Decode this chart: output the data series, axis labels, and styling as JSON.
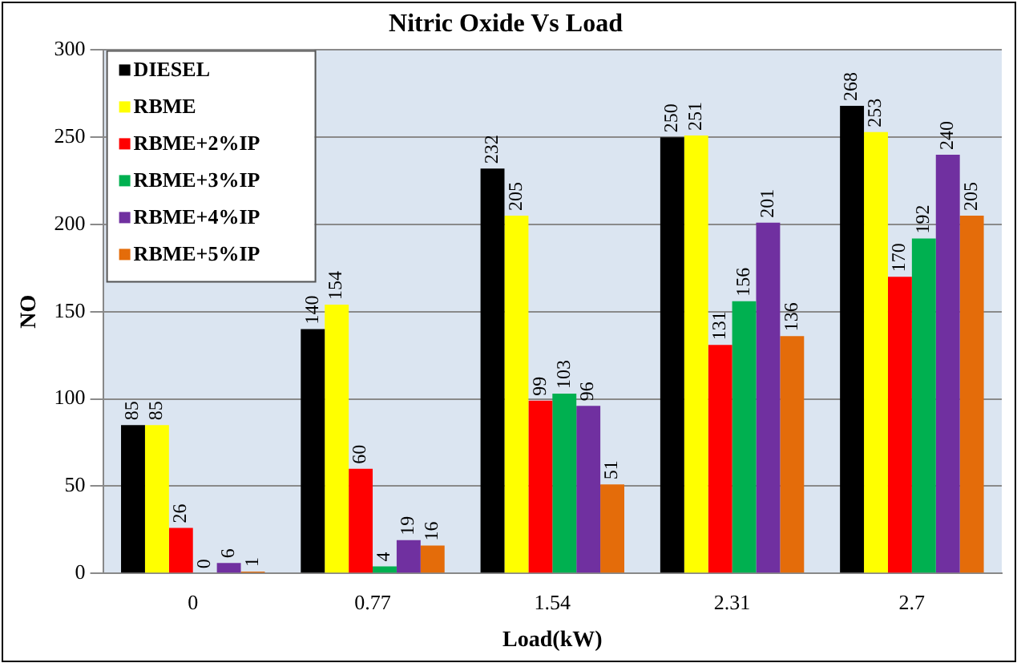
{
  "chart_data": {
    "type": "bar",
    "title": "Nitric Oxide Vs Load",
    "xlabel": "Load(kW)",
    "ylabel": "NO",
    "categories": [
      "0",
      "0.77",
      "1.54",
      "2.31",
      "2.7"
    ],
    "series": [
      {
        "name": "DIESEL",
        "color": "#000000",
        "values": [
          85,
          140,
          232,
          250,
          268
        ]
      },
      {
        "name": "RBME",
        "color": "#ffff00",
        "values": [
          85,
          154,
          205,
          251,
          253
        ]
      },
      {
        "name": "RBME+2%IP",
        "color": "#ff0000",
        "values": [
          26,
          60,
          99,
          131,
          170
        ]
      },
      {
        "name": "RBME+3%IP",
        "color": "#00b050",
        "values": [
          0,
          4,
          103,
          156,
          192
        ]
      },
      {
        "name": "RBME+4%IP",
        "color": "#7030a0",
        "values": [
          6,
          19,
          96,
          201,
          240
        ]
      },
      {
        "name": "RBME+5%IP",
        "color": "#e46c0a",
        "values": [
          1,
          16,
          51,
          136,
          205
        ]
      }
    ],
    "ylim": [
      0,
      300
    ],
    "yticks": [
      0,
      50,
      100,
      150,
      200,
      250,
      300
    ],
    "grid": "y",
    "legend": "top left",
    "data_labels": true
  }
}
